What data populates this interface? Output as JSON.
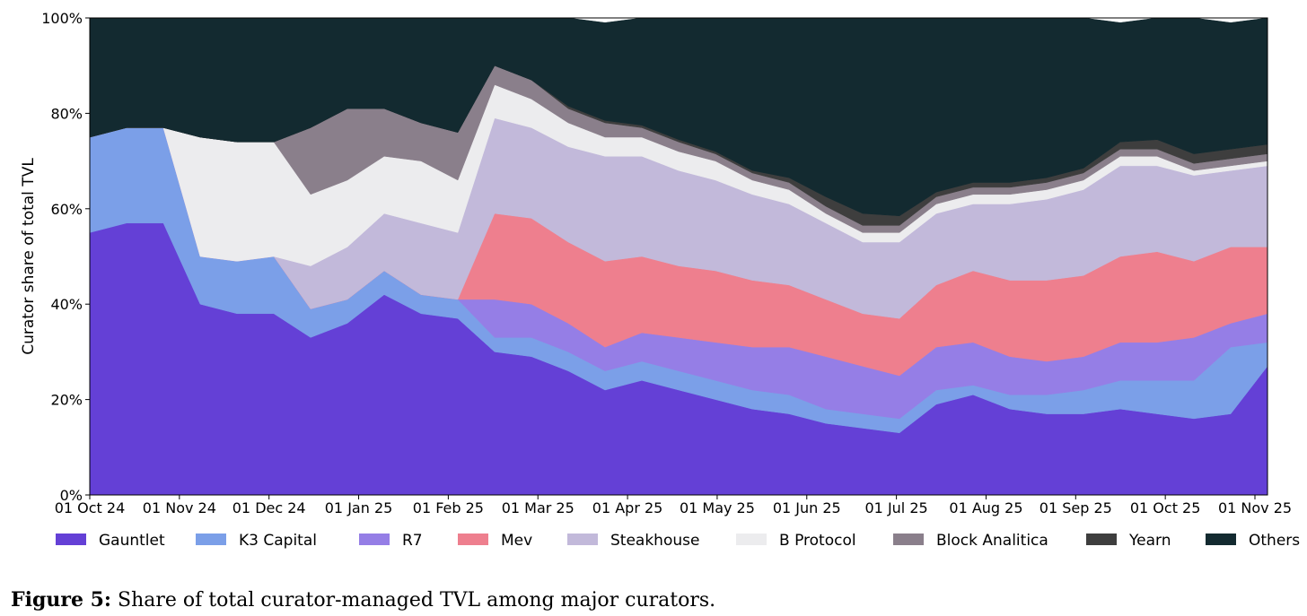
{
  "caption": {
    "label": "Figure 5:",
    "text": "Share of total curator-managed TVL among major curators."
  },
  "chart_data": {
    "type": "area",
    "stacked": true,
    "ylabel": "Curator share of total TVL",
    "xlabel": "",
    "ylim": [
      0,
      100
    ],
    "y_ticks": [
      0,
      20,
      40,
      60,
      80,
      100
    ],
    "y_tick_labels": [
      "0%",
      "20%",
      "40%",
      "60%",
      "80%",
      "100%"
    ],
    "x_tick_labels": [
      "01 Oct 24",
      "01 Nov 24",
      "01 Dec 24",
      "01 Jan 25",
      "01 Feb 25",
      "01 Mar 25",
      "01 Apr 25",
      "01 May 25",
      "01 Jun 25",
      "01 Jul 25",
      "01 Aug 25",
      "01 Sep 25",
      "01 Oct 25",
      "01 Nov 25"
    ],
    "x": [
      "01 Oct 24",
      "15 Oct 24",
      "01 Nov 24",
      "05 Nov 24",
      "15 Nov 24",
      "23 Nov 24",
      "01 Dec 24",
      "15 Dec 24",
      "01 Jan 25",
      "15 Jan 25",
      "20 Jan 25",
      "01 Feb 25",
      "15 Feb 25",
      "01 Mar 25",
      "15 Mar 25",
      "01 Apr 25",
      "15 Apr 25",
      "01 May 25",
      "15 May 25",
      "01 Jun 25",
      "15 Jun 25",
      "25 Jun 25",
      "01 Jul 25",
      "15 Jul 25",
      "01 Aug 25",
      "15 Aug 25",
      "01 Sep 25",
      "15 Sep 25",
      "01 Oct 25",
      "15 Oct 25",
      "25 Oct 25",
      "01 Nov 25",
      "05 Nov 25"
    ],
    "series": [
      {
        "name": "Gauntlet",
        "color": "#6440d6",
        "values": [
          55,
          57,
          57,
          40,
          38,
          38,
          33,
          36,
          42,
          38,
          37,
          30,
          29,
          26,
          22,
          24,
          22,
          20,
          18,
          17,
          15,
          14,
          13,
          19,
          21,
          18,
          17,
          17,
          18,
          17,
          16,
          17,
          27
        ]
      },
      {
        "name": "K3 Capital",
        "color": "#7b9fe8",
        "values": [
          20,
          20,
          20,
          10,
          11,
          12,
          6,
          5,
          5,
          4,
          4,
          3,
          4,
          4,
          4,
          4,
          4,
          4,
          4,
          4,
          3,
          3,
          3,
          3,
          2,
          3,
          4,
          5,
          6,
          7,
          8,
          14,
          5
        ]
      },
      {
        "name": "R7",
        "color": "#957ee6",
        "values": [
          0,
          0,
          0,
          0,
          0,
          0,
          0,
          0,
          0,
          0,
          0,
          8,
          7,
          6,
          5,
          6,
          7,
          8,
          9,
          10,
          11,
          10,
          9,
          9,
          9,
          8,
          7,
          7,
          8,
          8,
          9,
          5,
          6
        ]
      },
      {
        "name": "Mev",
        "color": "#ee7f8e",
        "values": [
          0,
          0,
          0,
          0,
          0,
          0,
          0,
          0,
          0,
          0,
          0,
          18,
          18,
          17,
          18,
          16,
          15,
          15,
          14,
          13,
          12,
          11,
          12,
          13,
          15,
          16,
          17,
          17,
          18,
          19,
          16,
          16,
          14
        ]
      },
      {
        "name": "Steakhouse",
        "color": "#c2b9da",
        "values": [
          0,
          0,
          0,
          0,
          0,
          0,
          9,
          11,
          12,
          15,
          14,
          20,
          19,
          20,
          22,
          21,
          20,
          19,
          18,
          17,
          16,
          15,
          16,
          15,
          14,
          16,
          17,
          18,
          19,
          18,
          18,
          16,
          17
        ]
      },
      {
        "name": "B Protocol",
        "color": "#ececee",
        "values": [
          0,
          0,
          0,
          25,
          25,
          24,
          15,
          14,
          12,
          13,
          11,
          7,
          6,
          5,
          4,
          4,
          4,
          4,
          3,
          3,
          2,
          2,
          2,
          2,
          2,
          2,
          2,
          2,
          2,
          2,
          1,
          1,
          1
        ]
      },
      {
        "name": "Block Analitica",
        "color": "#8a7f8b",
        "values": [
          0,
          0,
          0,
          0,
          0,
          0,
          14,
          15,
          10,
          8,
          10,
          4,
          4,
          3,
          3,
          2,
          2,
          1.5,
          1.5,
          1.5,
          1.5,
          1.5,
          1.5,
          1.5,
          1.5,
          1.5,
          1.5,
          1.5,
          1.5,
          1.5,
          1.5,
          1.5,
          1.5
        ]
      },
      {
        "name": "Yearn",
        "color": "#3e3e3e",
        "values": [
          0,
          0,
          0,
          0,
          0,
          0,
          0,
          0,
          0,
          0,
          0,
          0,
          0,
          0.5,
          0.5,
          0.5,
          0.5,
          0.5,
          0.5,
          1,
          2,
          2.5,
          2,
          1,
          1,
          1,
          1,
          1,
          1.5,
          2,
          2,
          2,
          2
        ]
      },
      {
        "name": "Others",
        "color": "#132a30",
        "values": [
          25,
          23,
          23,
          25,
          26,
          26,
          23,
          19,
          19,
          22,
          24,
          10,
          13,
          18.5,
          20.5,
          22.5,
          25.5,
          28,
          32,
          33.5,
          37.5,
          41,
          41.5,
          36.5,
          34.5,
          34.5,
          33.5,
          31.5,
          25,
          25.5,
          28.5,
          26.5,
          26.5
        ]
      }
    ],
    "legend": {
      "position": "bottom",
      "entries": [
        "Gauntlet",
        "K3 Capital",
        "R7",
        "Mev",
        "Steakhouse",
        "B Protocol",
        "Block Analitica",
        "Yearn",
        "Others"
      ]
    },
    "grid": false
  }
}
